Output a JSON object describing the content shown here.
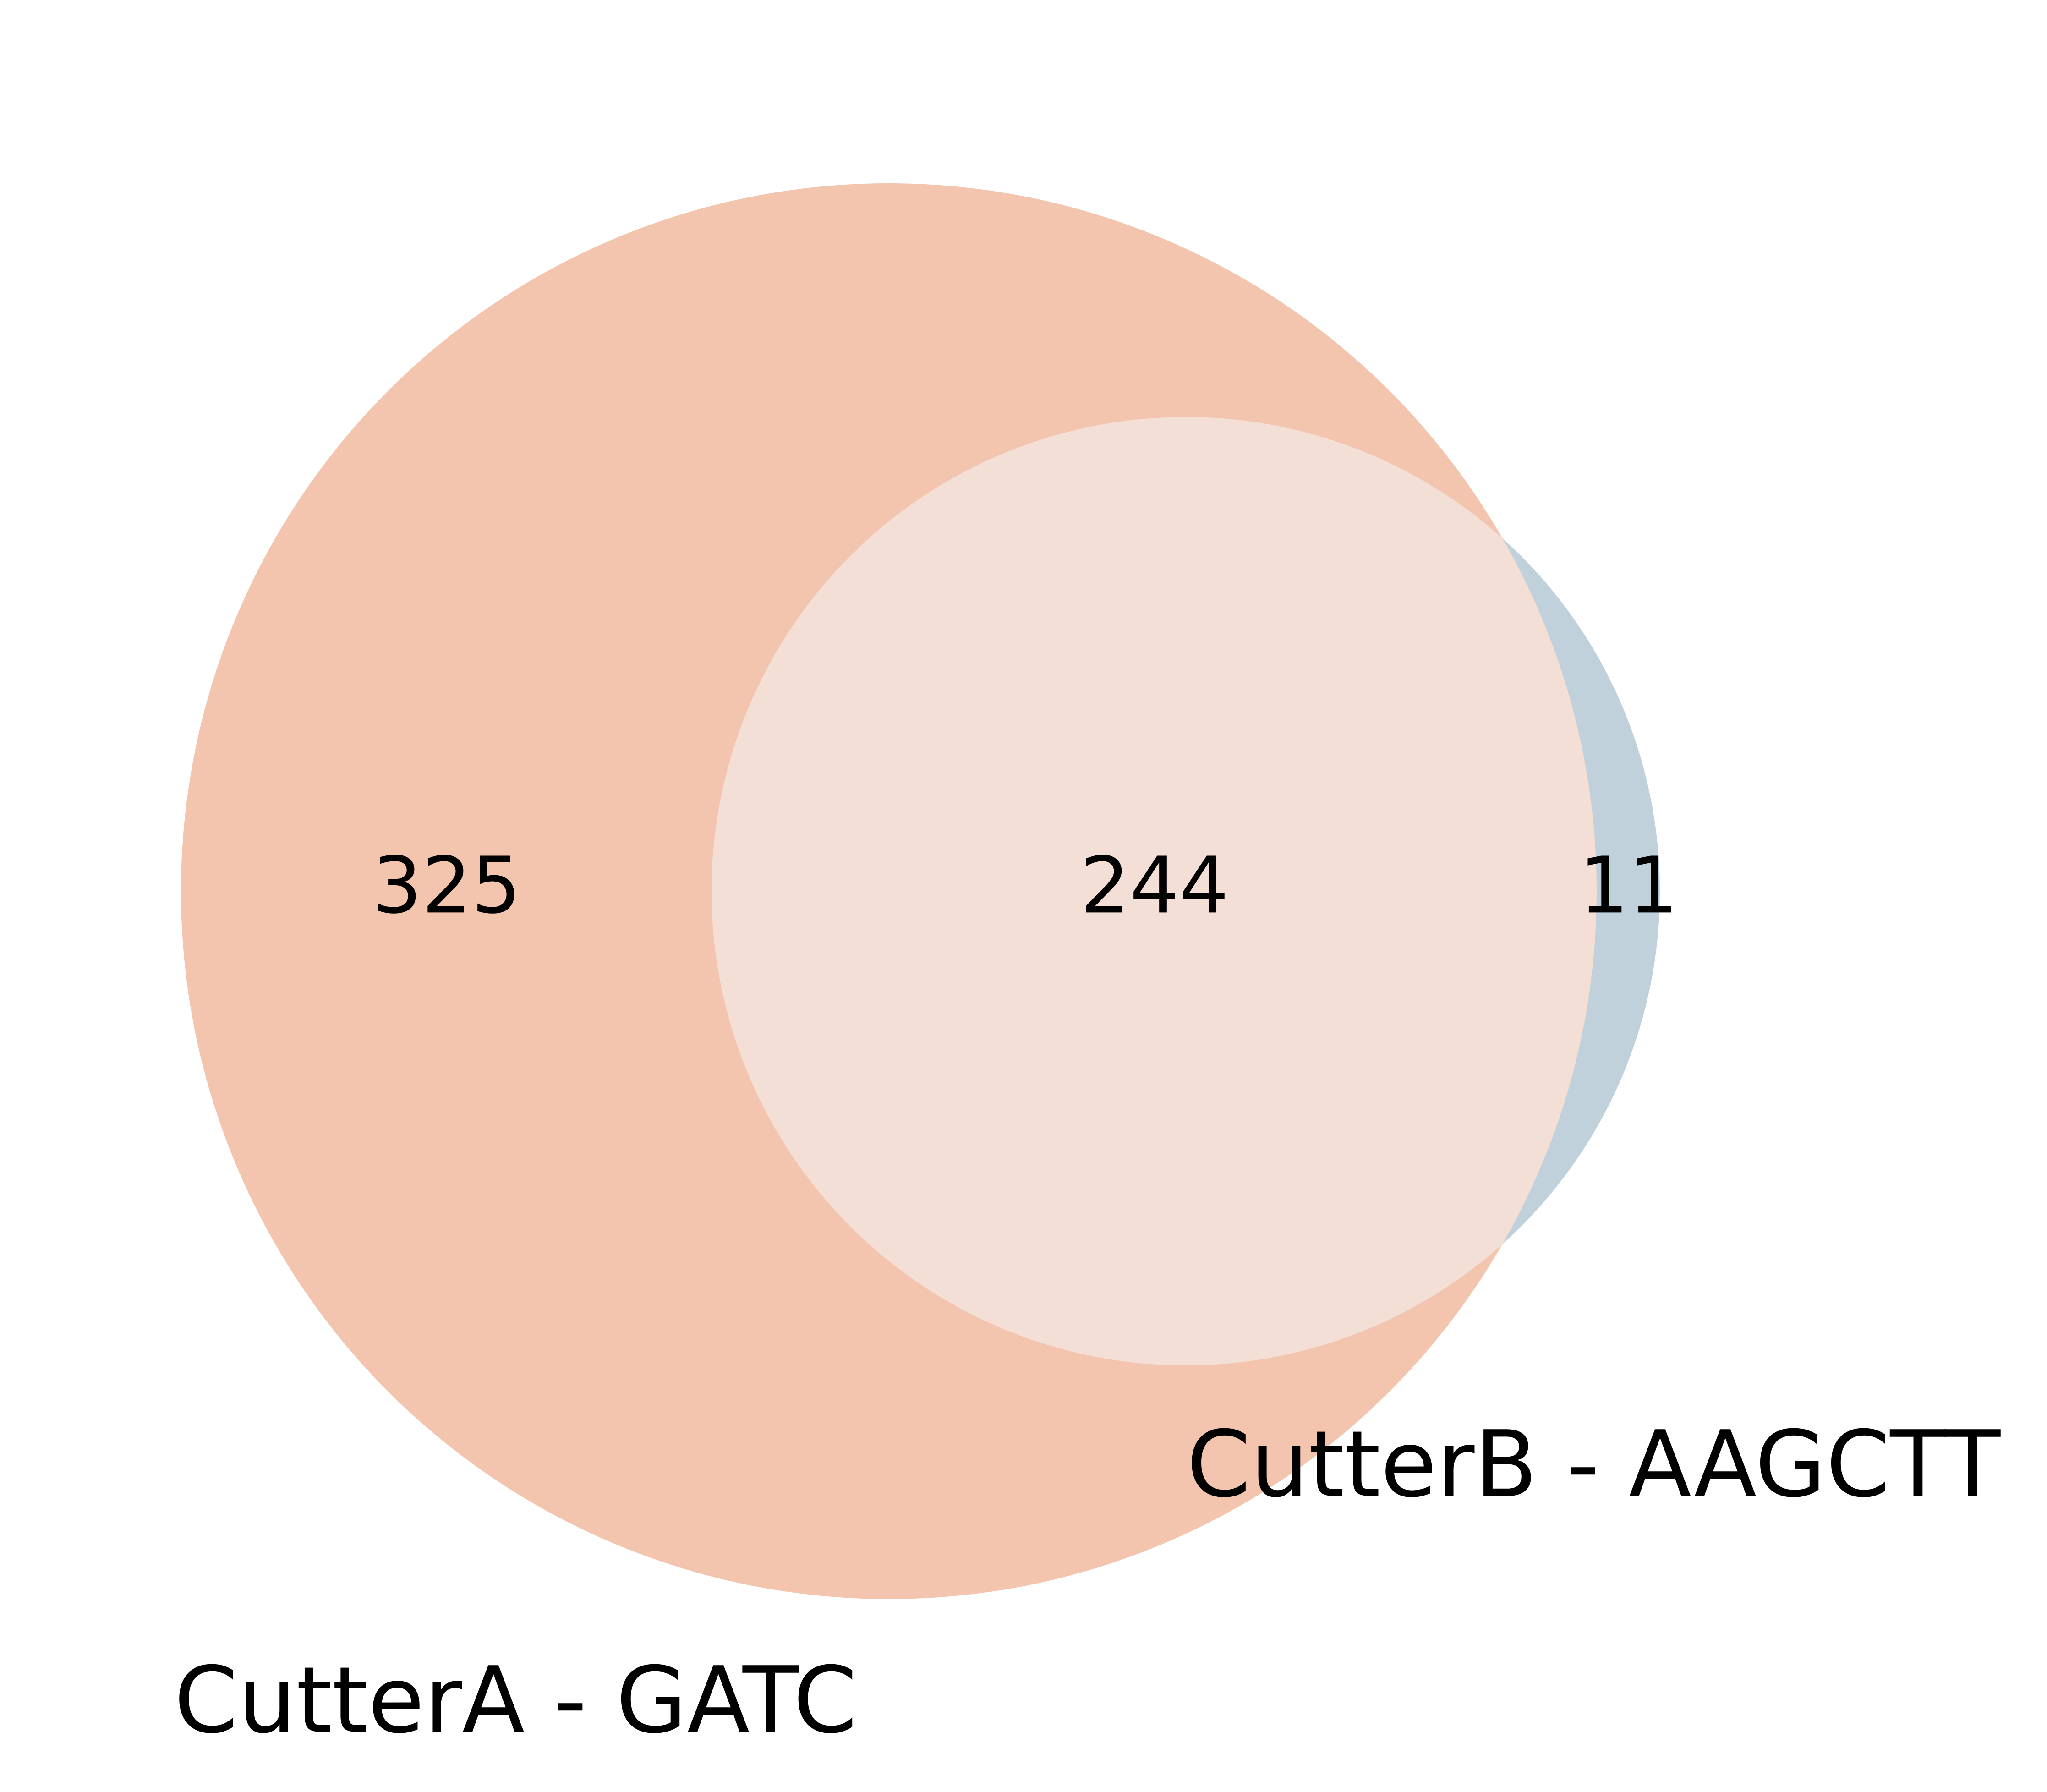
{
  "diagram": {
    "type": "venn2",
    "sets": [
      {
        "id": "A",
        "label": "CutterA - GATC",
        "color": "#f3c5ae"
      },
      {
        "id": "B",
        "label": "CutterB - AAGCTT",
        "color": "#c1d1dc"
      }
    ],
    "overlap_color": "#f3dfd6",
    "regions": {
      "only_a": "325",
      "a_and_b": "244",
      "only_b": "11"
    }
  }
}
